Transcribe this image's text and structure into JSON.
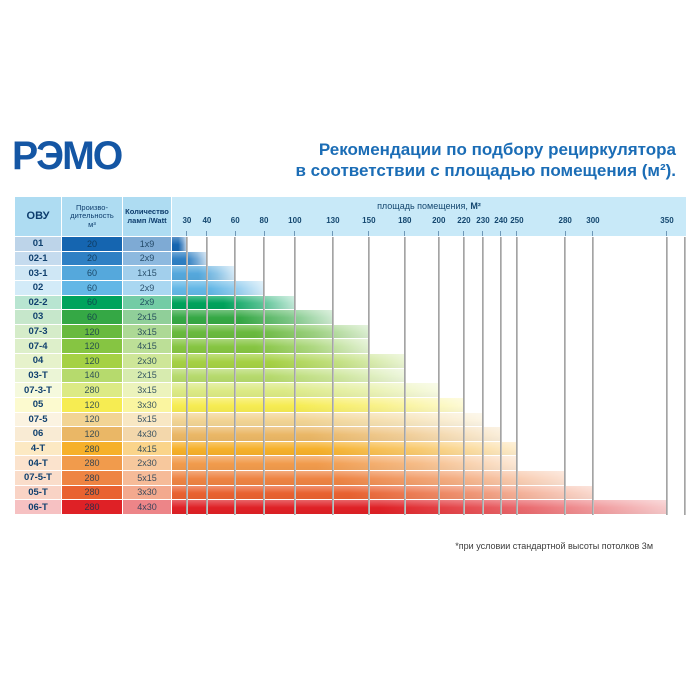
{
  "logo": "РЭМО",
  "title": {
    "line1": "Рекомендации по подбору рециркулятора",
    "line2": "в соответствии с площадью помещения (м²)."
  },
  "table": {
    "headers": {
      "col1": "ОВУ",
      "col2": "Произво-\nдительность\nм³",
      "col3": "Количество\nламп /Watt",
      "area_label": "площадь помещения,",
      "area_unit": "М²"
    },
    "ticks": [
      30,
      40,
      60,
      80,
      100,
      130,
      150,
      180,
      200,
      220,
      230,
      240,
      250,
      280,
      300,
      350
    ],
    "tick_fractions": {
      "30": 0.029,
      "40": 0.068,
      "60": 0.123,
      "80": 0.179,
      "100": 0.239,
      "130": 0.313,
      "150": 0.383,
      "180": 0.453,
      "200": 0.519,
      "220": 0.568,
      "230": 0.605,
      "240": 0.64,
      "250": 0.671,
      "280": 0.765,
      "300": 0.819,
      "350": 0.963
    },
    "rows": [
      {
        "model": "01",
        "capacity": "20",
        "lamps": "1x9",
        "max_area": 30,
        "color": "#1565b0"
      },
      {
        "model": "02-1",
        "capacity": "20",
        "lamps": "2x9",
        "max_area": 40,
        "color": "#2f80c4"
      },
      {
        "model": "03-1",
        "capacity": "60",
        "lamps": "1x15",
        "max_area": 60,
        "color": "#55a8dc"
      },
      {
        "model": "02",
        "capacity": "60",
        "lamps": "2x9",
        "max_area": 80,
        "color": "#63b7e6"
      },
      {
        "model": "02-2",
        "capacity": "60",
        "lamps": "2x9",
        "max_area": 100,
        "color": "#00a35c"
      },
      {
        "model": "03",
        "capacity": "60",
        "lamps": "2x15",
        "max_area": 130,
        "color": "#35a845"
      },
      {
        "model": "07-3",
        "capacity": "120",
        "lamps": "3x15",
        "max_area": 150,
        "color": "#69ba3e"
      },
      {
        "model": "07-4",
        "capacity": "120",
        "lamps": "4x15",
        "max_area": 150,
        "color": "#86c542"
      },
      {
        "model": "04",
        "capacity": "120",
        "lamps": "2x30",
        "max_area": 180,
        "color": "#a5d144"
      },
      {
        "model": "03-Т",
        "capacity": "140",
        "lamps": "2x15",
        "max_area": 180,
        "color": "#b6da6d"
      },
      {
        "model": "07-3-Т",
        "capacity": "280",
        "lamps": "3x15",
        "max_area": 200,
        "color": "#dcea85"
      },
      {
        "model": "05",
        "capacity": "120",
        "lamps": "3x30",
        "max_area": 220,
        "color": "#f6ec52"
      },
      {
        "model": "07-5",
        "capacity": "120",
        "lamps": "5x15",
        "max_area": 230,
        "color": "#f2d494"
      },
      {
        "model": "06",
        "capacity": "120",
        "lamps": "4x30",
        "max_area": 240,
        "color": "#eab766"
      },
      {
        "model": "4-Т",
        "capacity": "280",
        "lamps": "4x15",
        "max_area": 250,
        "color": "#f6b02a"
      },
      {
        "model": "04-Т",
        "capacity": "280",
        "lamps": "2x30",
        "max_area": 250,
        "color": "#f19b4c"
      },
      {
        "model": "07-5-Т",
        "capacity": "280",
        "lamps": "5x15",
        "max_area": 280,
        "color": "#ee8443"
      },
      {
        "model": "05-Т",
        "capacity": "280",
        "lamps": "3x30",
        "max_area": 300,
        "color": "#e96231"
      },
      {
        "model": "06-Т",
        "capacity": "280",
        "lamps": "4x30",
        "max_area": 350,
        "color": "#df2126"
      }
    ]
  },
  "footnote": "*при условии стандартной высоты потолков 3м",
  "colors": {
    "logo_blue": "#1456a4",
    "title_blue": "#1b6db6",
    "header_left_bg": "#aedcf2",
    "header_chart_bg": "#c8e9f8",
    "header_text": "#0e3d6d",
    "gridline": "#969696"
  },
  "chart_data": {
    "type": "bar",
    "orientation": "horizontal",
    "title": "Рекомендации по подбору рециркулятора в соответствии с площадью помещения (м²).",
    "xlabel": "площадь помещения, М²",
    "categories": [
      "01",
      "02-1",
      "03-1",
      "02",
      "02-2",
      "03",
      "07-3",
      "07-4",
      "04",
      "03-Т",
      "07-3-Т",
      "05",
      "07-5",
      "06",
      "4-Т",
      "04-Т",
      "07-5-Т",
      "05-Т",
      "06-Т"
    ],
    "series": [
      {
        "name": "Производительность м³",
        "values": [
          20,
          20,
          60,
          60,
          60,
          60,
          120,
          120,
          120,
          140,
          280,
          120,
          120,
          120,
          280,
          280,
          280,
          280,
          280
        ]
      },
      {
        "name": "Количество ламп /Watt",
        "values": [
          "1x9",
          "2x9",
          "1x15",
          "2x9",
          "2x9",
          "2x15",
          "3x15",
          "4x15",
          "2x30",
          "2x15",
          "3x15",
          "3x30",
          "5x15",
          "4x30",
          "4x15",
          "2x30",
          "5x15",
          "3x30",
          "4x30"
        ]
      },
      {
        "name": "площадь помещения, М² (макс.)",
        "values": [
          30,
          40,
          60,
          80,
          100,
          130,
          150,
          150,
          180,
          180,
          200,
          220,
          230,
          240,
          250,
          250,
          280,
          300,
          350
        ]
      }
    ],
    "x_ticks": [
      30,
      40,
      60,
      80,
      100,
      130,
      150,
      180,
      200,
      220,
      230,
      240,
      250,
      280,
      300,
      350
    ],
    "xlim": [
      0,
      350
    ],
    "grid": true,
    "legend": false,
    "footnote": "*при условии стандартной высоты потолков 3м"
  }
}
